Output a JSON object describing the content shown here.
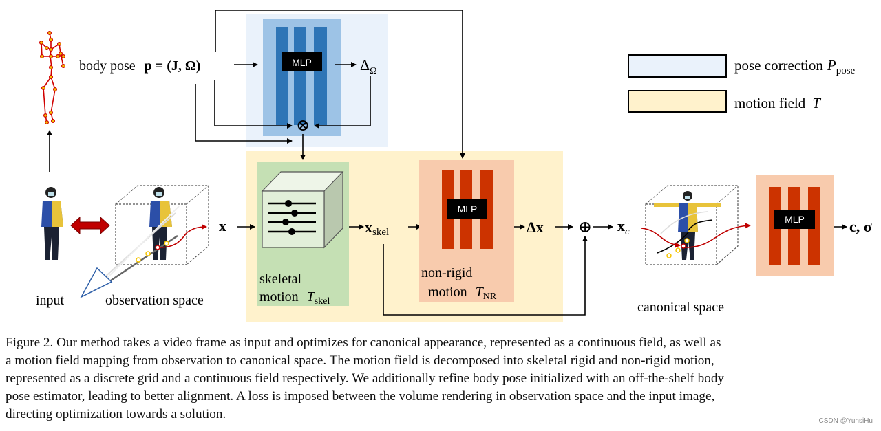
{
  "diagram": {
    "body_pose_label": "body pose",
    "body_pose_formula": "p = (J, Ω)",
    "delta_omega": "Δ",
    "delta_omega_sub": "Ω",
    "otimes": "⊗",
    "oplus": "⊕",
    "mlp_label": "MLP",
    "x_label": "x",
    "x_skel": "x",
    "x_skel_sub": "skel",
    "delta_x": "Δx",
    "x_c": "x",
    "x_c_sub": "c",
    "output": "c, σ",
    "input_label": "input",
    "observation_label": "observation space",
    "canonical_label": "canonical space",
    "skeletal_line1": "skeletal",
    "skeletal_line2": "motion",
    "skeletal_symbol": "T",
    "skeletal_symbol_sub": "skel",
    "nonrigid_line1": "non-rigid",
    "nonrigid_line2": "motion",
    "nonrigid_symbol": "T",
    "nonrigid_symbol_sub": "NR"
  },
  "legend": [
    {
      "label": "pose correction",
      "symbol": "P",
      "sub": "pose",
      "color": "#eaf2fb"
    },
    {
      "label": "motion field",
      "symbol": "T",
      "sub": "",
      "color": "#fff2cc"
    }
  ],
  "colors": {
    "pose_region": "#eaf2fb",
    "motion_region": "#fff2cc",
    "skeletal_box": "#c5e0b4",
    "nonrigid_box": "#f8cbad",
    "blue_mlp_bg": "#9dc3e6",
    "blue_bars": "#2e75b6",
    "red_bars": "#cc3300",
    "skeleton": "#d00000"
  },
  "caption": [
    "Figure 2. Our method takes a video frame as input and optimizes for canonical appearance, represented as a continuous field, as well as",
    "a motion field mapping from observation to canonical space. The motion field is decomposed into skeletal rigid and non-rigid motion,",
    "represented as a discrete grid and a continuous field respectively. We additionally refine body pose initialized with an off-the-shelf body",
    "pose estimator, leading to better alignment. A loss is imposed between the volume rendering in observation space and the input image,",
    "directing optimization towards a solution."
  ],
  "watermark": "CSDN @YuhsiHu"
}
